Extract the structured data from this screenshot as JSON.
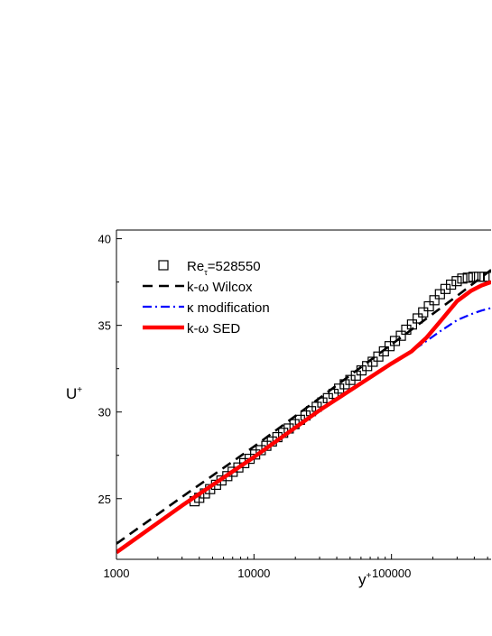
{
  "chart_data": {
    "type": "line",
    "title": "",
    "xlabel": "y",
    "xlabel_sup": "+",
    "ylabel": "U",
    "ylabel_sup": "+",
    "xscale": "log",
    "xlim": [
      1000,
      530000
    ],
    "ylim": [
      21.5,
      40.5
    ],
    "xticks": [
      1000,
      10000,
      100000
    ],
    "xtick_labels": [
      "1000",
      "10000",
      "100000"
    ],
    "yticks": [
      25,
      30,
      35,
      40
    ],
    "ytick_labels": [
      "25",
      "30",
      "35",
      "40"
    ],
    "grid": false,
    "legend": {
      "placement": "top-left",
      "entries": [
        {
          "label": "Re",
          "sub": "τ",
          "suffix": "=528550",
          "style": "square-marker",
          "color": "#000000"
        },
        {
          "label": "k-ω Wilcox",
          "style": "dash",
          "color": "#000000"
        },
        {
          "label": "κ modification",
          "style": "dashdot",
          "color": "#0000ff"
        },
        {
          "label": "k-ω SED",
          "style": "solid-thick",
          "color": "#ff0000"
        }
      ]
    },
    "series": [
      {
        "name": "Reτ=528550",
        "style": "square-marker",
        "color": "#000000",
        "x": [
          3700,
          4000,
          4400,
          4800,
          5300,
          5800,
          6400,
          7000,
          7700,
          8500,
          9300,
          10200,
          11200,
          12300,
          13500,
          14800,
          16300,
          17900,
          19700,
          21600,
          23700,
          26000,
          28600,
          31400,
          34500,
          37900,
          41600,
          45700,
          50200,
          55100,
          60500,
          66500,
          73000,
          80200,
          88100,
          96800,
          106000,
          117000,
          128000,
          141000,
          155000,
          170000,
          187000,
          205000,
          225000,
          247000,
          271000,
          298000,
          327000,
          359000,
          394000,
          433000,
          475000,
          510000
        ],
        "y": [
          24.85,
          25.05,
          25.3,
          25.55,
          25.8,
          26.05,
          26.3,
          26.55,
          26.8,
          27.05,
          27.3,
          27.55,
          27.8,
          28.05,
          28.3,
          28.55,
          28.8,
          29.05,
          29.3,
          29.55,
          29.8,
          30.05,
          30.3,
          30.55,
          30.8,
          31.05,
          31.35,
          31.6,
          31.85,
          32.1,
          32.4,
          32.65,
          32.9,
          33.2,
          33.5,
          33.8,
          34.1,
          34.4,
          34.75,
          35.05,
          35.4,
          35.75,
          36.1,
          36.45,
          36.8,
          37.1,
          37.35,
          37.55,
          37.7,
          37.75,
          37.8,
          37.8,
          37.8,
          37.8
        ]
      },
      {
        "name": "k-ω Wilcox",
        "style": "dash",
        "color": "#000000",
        "x": [
          1000,
          3000,
          10000,
          30000,
          100000,
          300000,
          530000
        ],
        "y": [
          22.4,
          25.1,
          28.0,
          30.8,
          33.9,
          36.7,
          38.2
        ]
      },
      {
        "name": "κ modification",
        "style": "dashdot",
        "color": "#0000ff",
        "x": [
          1000,
          3000,
          10000,
          30000,
          100000,
          140000,
          180000,
          230000,
          300000,
          380000,
          450000,
          530000
        ],
        "y": [
          21.9,
          24.6,
          27.4,
          30.1,
          32.8,
          33.5,
          34.1,
          34.7,
          35.3,
          35.65,
          35.85,
          36.0
        ]
      },
      {
        "name": "k-ω SED",
        "style": "solid-thick",
        "color": "#ff0000",
        "x": [
          1000,
          3000,
          10000,
          30000,
          100000,
          140000,
          180000,
          230000,
          300000,
          380000,
          450000,
          530000
        ],
        "y": [
          21.9,
          24.6,
          27.4,
          30.1,
          32.8,
          33.5,
          34.3,
          35.3,
          36.4,
          37.0,
          37.3,
          37.5
        ]
      }
    ]
  }
}
